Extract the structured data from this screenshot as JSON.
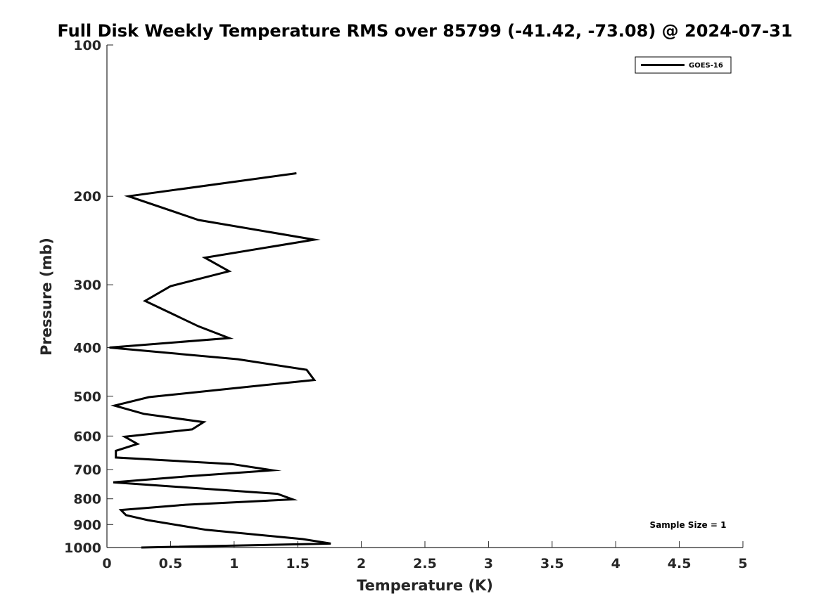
{
  "chart_data": {
    "type": "line",
    "title": "Full Disk Weekly Temperature RMS over 85799 (-41.42, -73.08) @ 2024-07-31",
    "xlabel": "Temperature (K)",
    "ylabel": "Pressure (mb)",
    "xlim": [
      0,
      5
    ],
    "ylim": [
      100,
      1000
    ],
    "y_scale": "log",
    "y_reversed": true,
    "xticks": [
      0,
      0.5,
      1,
      1.5,
      2,
      2.5,
      3,
      3.5,
      4,
      4.5,
      5
    ],
    "xtick_labels": [
      "0",
      "0.5",
      "1",
      "1.5",
      "2",
      "2.5",
      "3",
      "3.5",
      "4",
      "4.5",
      "5"
    ],
    "yticks": [
      100,
      200,
      300,
      400,
      500,
      600,
      700,
      800,
      900,
      1000
    ],
    "ytick_labels": [
      "100",
      "200",
      "300",
      "400",
      "500",
      "600",
      "700",
      "800",
      "900",
      "1000"
    ],
    "grid": false,
    "legend_position": "top-right",
    "series": [
      {
        "name": "GOES-16",
        "color": "#000000",
        "points": [
          [
            1.49,
            180
          ],
          [
            0.17,
            200
          ],
          [
            0.72,
            223
          ],
          [
            1.63,
            244
          ],
          [
            0.77,
            265
          ],
          [
            0.96,
            282
          ],
          [
            0.5,
            302
          ],
          [
            0.3,
            323
          ],
          [
            0.72,
            363
          ],
          [
            0.96,
            383
          ],
          [
            0.02,
            400
          ],
          [
            1.03,
            422
          ],
          [
            1.57,
            443
          ],
          [
            1.63,
            464
          ],
          [
            1.0,
            482
          ],
          [
            0.33,
            502
          ],
          [
            0.06,
            522
          ],
          [
            0.29,
            542
          ],
          [
            0.76,
            563
          ],
          [
            0.67,
            582
          ],
          [
            0.14,
            602
          ],
          [
            0.24,
            622
          ],
          [
            0.07,
            642
          ],
          [
            0.07,
            662
          ],
          [
            0.98,
            682
          ],
          [
            1.3,
            702
          ],
          [
            0.62,
            722
          ],
          [
            0.05,
            742
          ],
          [
            1.34,
            782
          ],
          [
            1.46,
            802
          ],
          [
            0.62,
            822
          ],
          [
            0.11,
            842
          ],
          [
            0.15,
            862
          ],
          [
            0.32,
            882
          ],
          [
            0.78,
            922
          ],
          [
            1.54,
            962
          ],
          [
            1.76,
            982
          ],
          [
            0.27,
            1000
          ]
        ]
      }
    ],
    "annotations": [
      "Sample Size = 1"
    ]
  }
}
